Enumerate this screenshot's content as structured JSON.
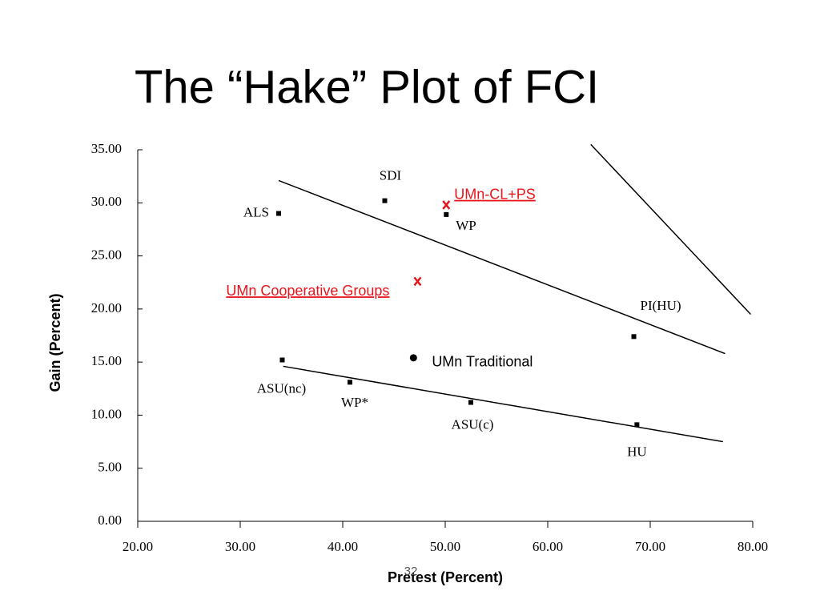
{
  "chart_data": {
    "type": "scatter",
    "title": "The “Hake” Plot of FCI",
    "xlabel": "Pretest (Percent)",
    "ylabel": "Gain (Percent)",
    "page_number": "32",
    "xlim": [
      20,
      80
    ],
    "ylim": [
      0,
      35
    ],
    "xticks": [
      {
        "value": 20,
        "label": "20.00"
      },
      {
        "value": 30,
        "label": "30.00"
      },
      {
        "value": 40,
        "label": "40.00"
      },
      {
        "value": 50,
        "label": "50.00"
      },
      {
        "value": 60,
        "label": "60.00"
      },
      {
        "value": 70,
        "label": "70.00"
      },
      {
        "value": 80,
        "label": "80.00"
      }
    ],
    "yticks": [
      {
        "value": 0,
        "label": "0.00"
      },
      {
        "value": 5,
        "label": "5.00"
      },
      {
        "value": 10,
        "label": "10.00"
      },
      {
        "value": 15,
        "label": "15.00"
      },
      {
        "value": 20,
        "label": "20.00"
      },
      {
        "value": 25,
        "label": "25.00"
      },
      {
        "value": 30,
        "label": "30.00"
      },
      {
        "value": 35,
        "label": "35.00"
      }
    ],
    "series": [
      {
        "marker": "square",
        "color": "#000000",
        "labels": [
          "ALS",
          "SDI",
          "WP",
          "PI(HU)",
          "ASU(nc)",
          "WP*",
          "ASU(c)",
          "HU"
        ],
        "x": [
          33.75,
          44.1,
          50.1,
          68.4,
          34.1,
          40.7,
          52.5,
          68.7
        ],
        "values": [
          29.0,
          30.2,
          28.9,
          17.4,
          15.2,
          13.1,
          11.2,
          9.1
        ]
      },
      {
        "marker": "x",
        "color": "#e8141b",
        "labels": [
          "UMn-CL+PS",
          "UMn Cooperative Groups"
        ],
        "x": [
          50.1,
          47.3
        ],
        "values": [
          29.8,
          22.6
        ]
      },
      {
        "marker": "circle",
        "color": "#000000",
        "labels": [
          "UMn Traditional"
        ],
        "x": [
          46.9
        ],
        "values": [
          15.4
        ]
      }
    ],
    "lines": [
      {
        "x": [
          33.75,
          77.3
        ],
        "values": [
          32.1,
          15.8
        ]
      },
      {
        "x": [
          34.2,
          77.1
        ],
        "values": [
          14.6,
          7.5
        ]
      },
      {
        "x": [
          64.2,
          79.8
        ],
        "values": [
          35.5,
          19.5
        ]
      }
    ]
  }
}
